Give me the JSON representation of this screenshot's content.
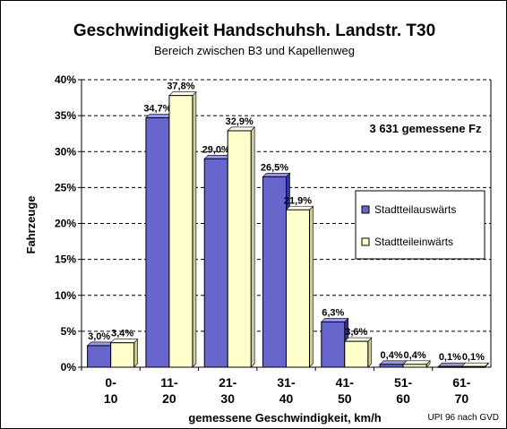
{
  "chart_data": {
    "type": "bar",
    "title": "Geschwindigkeit Handschuhsh. Landstr. T30",
    "subtitle": "Bereich zwischen B3 und Kapellenweg",
    "ylabel": "Fahrzeuge",
    "xlabel": "gemessene Geschwindigkeit, km/h",
    "ylim": [
      0,
      40
    ],
    "yticks": [
      0,
      5,
      10,
      15,
      20,
      25,
      30,
      35,
      40
    ],
    "ytick_labels": [
      "0%",
      "5%",
      "10%",
      "15%",
      "20%",
      "25%",
      "30%",
      "35%",
      "40%"
    ],
    "grid": "horizontal dashed",
    "categories": [
      [
        "0-",
        "10"
      ],
      [
        "11-",
        "20"
      ],
      [
        "21-",
        "30"
      ],
      [
        "31-",
        "40"
      ],
      [
        "41-",
        "50"
      ],
      [
        "51-",
        "60"
      ],
      [
        "61-",
        "70"
      ]
    ],
    "series": [
      {
        "name": "Stadtteilauswärts",
        "color": "#6666cc",
        "values": [
          3.0,
          34.7,
          29.0,
          26.5,
          6.3,
          0.4,
          0.1
        ],
        "labels": [
          "3,0%",
          "34,7%",
          "29,0%",
          "26,5%",
          "6,3%",
          "0,4%",
          "0,1%"
        ]
      },
      {
        "name": "Stadtteileinwärts",
        "color": "#ffffcc",
        "values": [
          3.4,
          37.8,
          32.9,
          21.9,
          3.6,
          0.4,
          0.1
        ],
        "labels": [
          "3,4%",
          "37,8%",
          "32,9%",
          "21,9%",
          "3,6%",
          "0,4%",
          "0,1%"
        ]
      }
    ],
    "annotation": "3 631 gemessene Fz",
    "legend_position": "right",
    "source": "UPI 96 nach GVD"
  }
}
